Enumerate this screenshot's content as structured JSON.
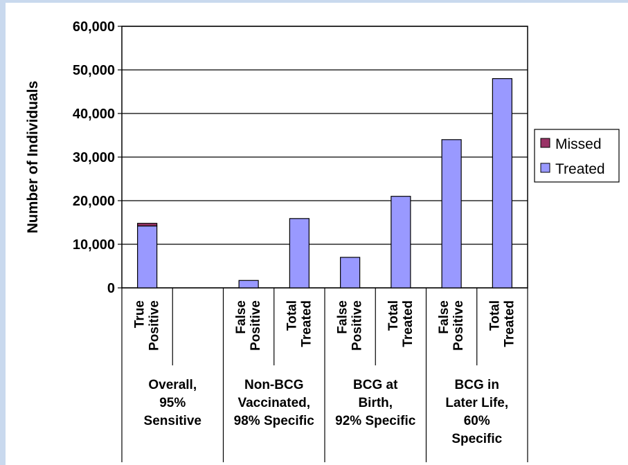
{
  "chart_data": {
    "type": "bar",
    "stacked": true,
    "ylabel": "Number of Individuals",
    "ylim": [
      0,
      60000
    ],
    "yticks": [
      "0",
      "10,000",
      "20,000",
      "30,000",
      "40,000",
      "50,000",
      "60,000"
    ],
    "grid": true,
    "legend_position": "right",
    "categories": [
      {
        "label": [
          "True",
          "Positive"
        ],
        "group": 0
      },
      {
        "label": [
          "",
          ""
        ],
        "group": 0
      },
      {
        "label": [
          "False",
          "Positive"
        ],
        "group": 1
      },
      {
        "label": [
          "Total",
          "Treated"
        ],
        "group": 1
      },
      {
        "label": [
          "False",
          "Positive"
        ],
        "group": 2
      },
      {
        "label": [
          "Total",
          "Treated"
        ],
        "group": 2
      },
      {
        "label": [
          "False",
          "Positive"
        ],
        "group": 3
      },
      {
        "label": [
          "Total",
          "Treated"
        ],
        "group": 3
      }
    ],
    "groups": [
      {
        "lines": [
          "Overall,",
          "95%",
          "Sensitive"
        ]
      },
      {
        "lines": [
          "Non-BCG",
          "Vaccinated,",
          "98% Specific"
        ]
      },
      {
        "lines": [
          "BCG at",
          "Birth,",
          "92% Specific"
        ]
      },
      {
        "lines": [
          "BCG in",
          "Later Life,",
          "60%",
          "Specific"
        ]
      }
    ],
    "series": [
      {
        "name": "Treated",
        "color": "#9999ff",
        "values": [
          14200,
          0,
          1700,
          15900,
          7000,
          21000,
          34000,
          48000
        ]
      },
      {
        "name": "Missed",
        "color": "#993366",
        "values": [
          600,
          0,
          0,
          0,
          0,
          0,
          0,
          0
        ]
      }
    ]
  }
}
